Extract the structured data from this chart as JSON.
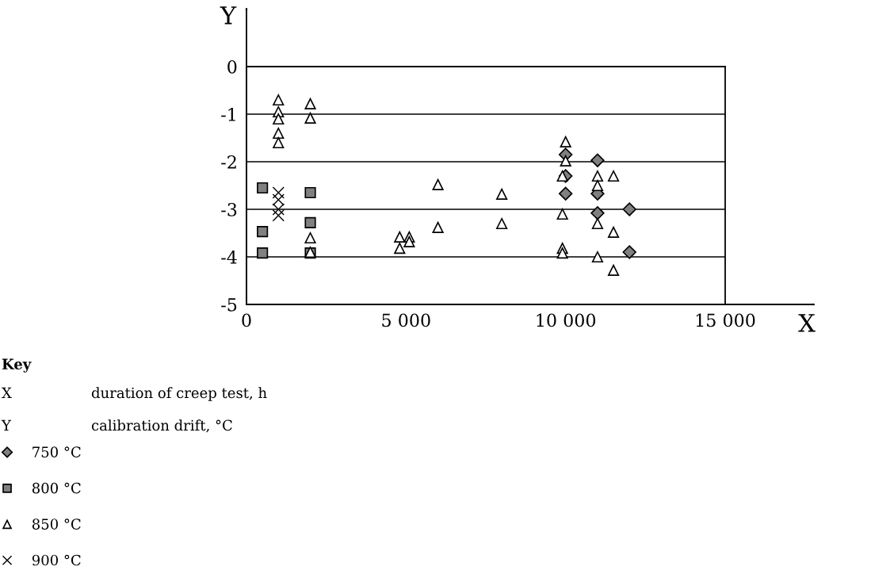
{
  "chart_data": {
    "type": "scatter",
    "xlabel": "X",
    "ylabel": "Y",
    "legend_title": "Key",
    "annotations": [
      "X",
      "duration of creep test, h",
      "Y",
      "calibration drift, °C"
    ],
    "xlim": [
      0,
      15000
    ],
    "ylim": [
      -5,
      0
    ],
    "xticks": [
      0,
      {
        "value": 5000,
        "label": "5 000"
      },
      {
        "value": 10000,
        "label": "10 000"
      },
      {
        "value": 15000,
        "label": "15 000"
      }
    ],
    "yticks": [
      0,
      -1,
      -2,
      -3,
      -4,
      -5
    ],
    "grid": "y",
    "legend": "bottom left",
    "series": [
      {
        "name": "750 °C",
        "color": "#808080",
        "marker": "diamond",
        "x": [
          10000,
          10000,
          10000,
          11000,
          11000,
          11000,
          12000,
          12000
        ],
        "values": [
          -1.85,
          -2.3,
          -2.67,
          -1.97,
          -2.67,
          -3.08,
          -3.0,
          -3.9
        ]
      },
      {
        "name": "800 °C",
        "color": "#808080",
        "marker": "square",
        "x": [
          500,
          500,
          500,
          2000,
          2000,
          2000
        ],
        "values": [
          -2.55,
          -3.47,
          -3.92,
          -2.65,
          -3.28,
          -3.92
        ]
      },
      {
        "name": "850 °C",
        "color": "#ffffff",
        "marker": "triangle",
        "x": [
          1000,
          1000,
          1000,
          1000,
          1000,
          2000,
          2000,
          2000,
          2000,
          4800,
          4800,
          5100,
          5100,
          6000,
          6000,
          8000,
          8000,
          9900,
          9900,
          9900,
          9900,
          10000,
          10000,
          11000,
          11000,
          11000,
          11000,
          11500,
          11500,
          11500
        ],
        "values": [
          -0.7,
          -0.95,
          -1.1,
          -1.4,
          -1.6,
          -0.78,
          -1.08,
          -3.6,
          -3.9,
          -3.58,
          -3.82,
          -3.58,
          -3.68,
          -2.48,
          -3.38,
          -2.68,
          -3.3,
          -2.3,
          -3.1,
          -3.82,
          -3.92,
          -1.58,
          -1.98,
          -2.3,
          -2.5,
          -3.3,
          -4.0,
          -2.3,
          -3.48,
          -4.28
        ]
      },
      {
        "name": "900 °C",
        "color": "#000000",
        "marker": "cross",
        "x": [
          1000,
          1000,
          1000,
          1000
        ],
        "values": [
          -2.65,
          -2.8,
          -3.0,
          -3.13
        ]
      }
    ]
  }
}
